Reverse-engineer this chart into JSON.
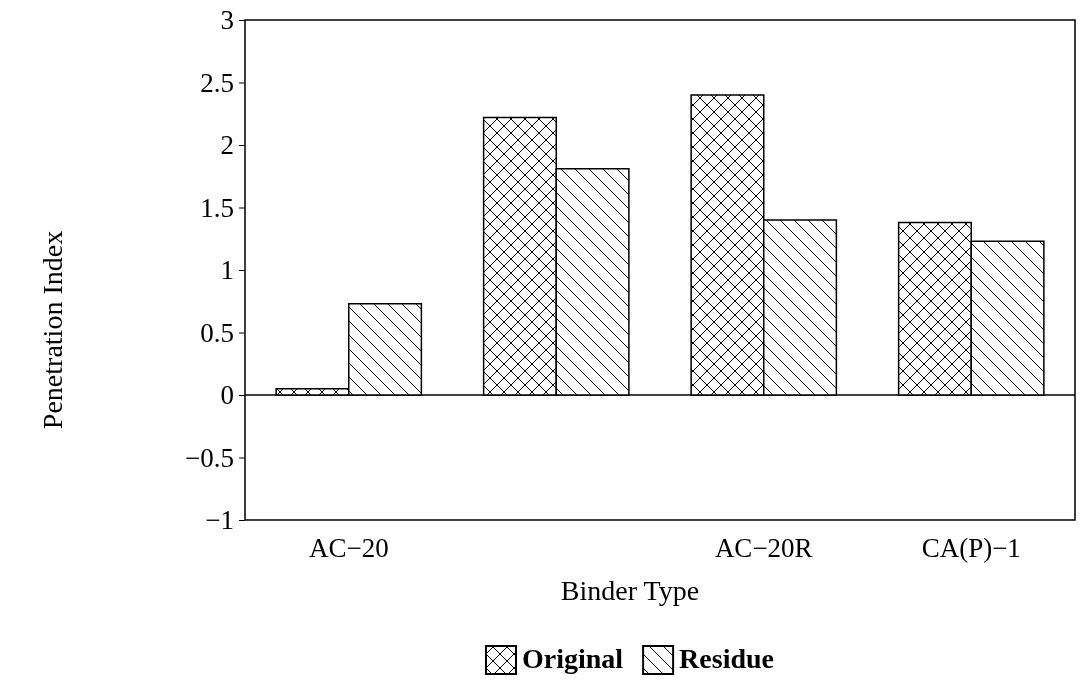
{
  "chart_data": {
    "type": "bar",
    "xlabel": "Binder Type",
    "ylabel": "Penetration Index",
    "categories": [
      "AC−20",
      null,
      "AC−20R",
      "CA(P)−1"
    ],
    "series": [
      {
        "name": "Original",
        "color": "#000000",
        "values": [
          0.05,
          2.22,
          2.4,
          1.38
        ]
      },
      {
        "name": "Residue",
        "color": "#000000",
        "values": [
          0.73,
          1.81,
          1.4,
          1.23
        ]
      }
    ],
    "ylim": [
      -1,
      3
    ],
    "yticks": [
      {
        "value": -1,
        "label": "−1"
      },
      {
        "value": -0.5,
        "label": "−0.5"
      },
      0,
      0.5,
      1,
      1.5,
      2,
      2.5,
      3
    ],
    "legend": "bottom"
  }
}
